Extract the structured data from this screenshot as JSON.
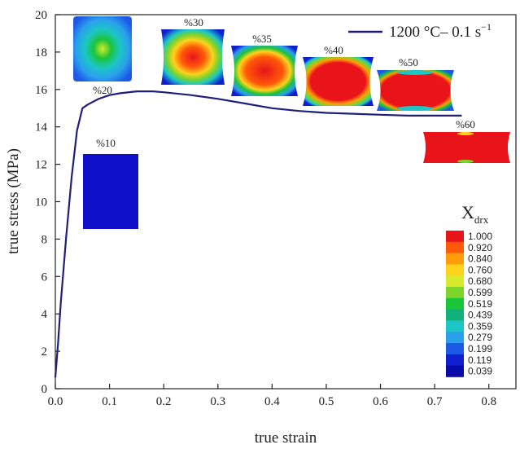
{
  "chart_data": {
    "type": "line",
    "title": "",
    "xlabel": "true strain",
    "ylabel": "true stress (MPa)",
    "xlim": [
      0,
      0.85
    ],
    "ylim": [
      0,
      20
    ],
    "x_ticks": [
      "0.0",
      "0.1",
      "0.2",
      "0.3",
      "0.4",
      "0.5",
      "0.6",
      "0.7",
      "0.8"
    ],
    "x_tick_values": [
      0,
      0.1,
      0.2,
      0.3,
      0.4,
      0.5,
      0.6,
      0.7,
      0.8
    ],
    "y_ticks": [
      "0",
      "2",
      "4",
      "6",
      "8",
      "10",
      "12",
      "14",
      "16",
      "18",
      "20"
    ],
    "y_tick_values": [
      0,
      2,
      4,
      6,
      8,
      10,
      12,
      14,
      16,
      18,
      20
    ],
    "grid": false,
    "legend_position": "top-right",
    "series": [
      {
        "name": "1200 °C– 0.1 s",
        "name_sup": "−1",
        "color": "#1f1f7a",
        "x": [
          0.0,
          0.005,
          0.01,
          0.02,
          0.03,
          0.04,
          0.05,
          0.06,
          0.08,
          0.1,
          0.12,
          0.15,
          0.18,
          0.2,
          0.25,
          0.3,
          0.35,
          0.4,
          0.45,
          0.5,
          0.55,
          0.6,
          0.65,
          0.7,
          0.75
        ],
        "y": [
          0.6,
          2.4,
          4.6,
          8.1,
          11.3,
          13.8,
          15.0,
          15.2,
          15.5,
          15.7,
          15.8,
          15.9,
          15.9,
          15.85,
          15.7,
          15.5,
          15.25,
          15.0,
          14.85,
          14.75,
          14.7,
          14.65,
          14.6,
          14.6,
          14.6
        ]
      }
    ],
    "colorbar": {
      "title": "X",
      "title_sub": "drx",
      "values": [
        "1.000",
        "0.920",
        "0.840",
        "0.760",
        "0.680",
        "0.599",
        "0.519",
        "0.439",
        "0.359",
        "0.279",
        "0.199",
        "0.119",
        "0.039"
      ],
      "colors": [
        "#e8141a",
        "#ff5a0a",
        "#ff9c0a",
        "#ffd21c",
        "#d6ea2a",
        "#7ed42a",
        "#1cc43a",
        "#12b07a",
        "#1cc6c6",
        "#2aa0ec",
        "#1c5ae6",
        "#0f1fd0",
        "#0a0aa8"
      ]
    },
    "insets": [
      {
        "label": "",
        "strain": 0.0
      },
      {
        "label": "%10",
        "strain": 0.1
      },
      {
        "label": "%20",
        "strain": 0.2
      },
      {
        "label": "%30",
        "strain": 0.3
      },
      {
        "label": "%35",
        "strain": 0.35
      },
      {
        "label": "%40",
        "strain": 0.4
      },
      {
        "label": "%50",
        "strain": 0.5
      },
      {
        "label": "%60",
        "strain": 0.6
      }
    ]
  }
}
